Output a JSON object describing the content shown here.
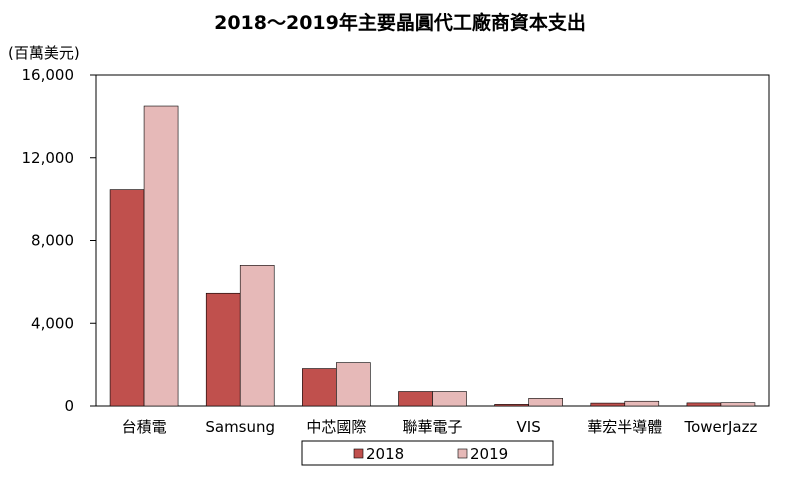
{
  "chart_data": {
    "type": "bar",
    "title": "2018～2019年主要晶圓代工廠商資本支出",
    "ylabel": "(百萬美元)",
    "xlabel": "",
    "ylim": [
      0,
      16000
    ],
    "yticks": [
      "0",
      "4,000",
      "8,000",
      "12,000",
      "16,000"
    ],
    "ytick_values": [
      0,
      4000,
      8000,
      12000,
      16000
    ],
    "categories": [
      "台積電",
      "Samsung",
      "中芯國際",
      "聯華電子",
      "VIS",
      "華宏半導體",
      "TowerJazz"
    ],
    "series": [
      {
        "name": "2018",
        "color": "#c0504d",
        "values": [
          10460,
          5450,
          1810,
          700,
          80,
          140,
          150
        ]
      },
      {
        "name": "2019",
        "color": "#e6b9b8",
        "values": [
          14500,
          6800,
          2100,
          700,
          370,
          230,
          160
        ]
      }
    ],
    "grid": false,
    "legend_position": "bottom"
  }
}
